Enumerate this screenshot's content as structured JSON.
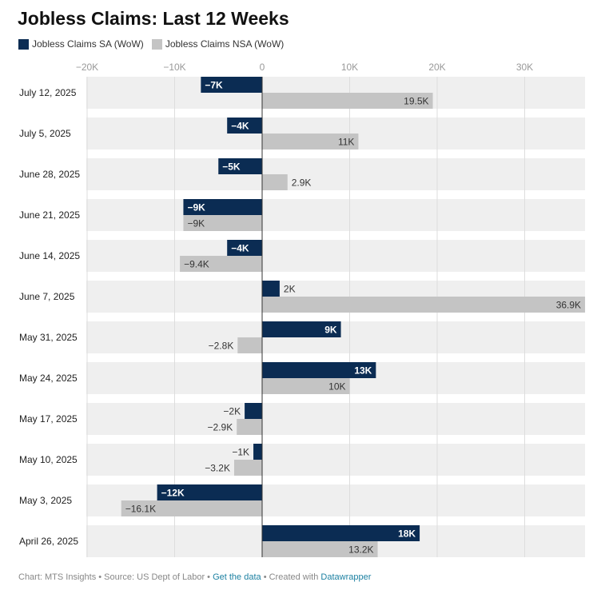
{
  "title": "Jobless Claims: Last 12 Weeks",
  "colors": {
    "sa": "#0b2c53",
    "nsa": "#c4c4c4",
    "row_bg": "#efefef"
  },
  "chart_data": {
    "type": "bar",
    "orientation": "horizontal",
    "categories": [
      "July 12, 2025",
      "July 5, 2025",
      "June 28, 2025",
      "June 21, 2025",
      "June 14, 2025",
      "June 7, 2025",
      "May 31, 2025",
      "May 24, 2025",
      "May 17, 2025",
      "May 10, 2025",
      "May 3, 2025",
      "April 26, 2025"
    ],
    "series": [
      {
        "name": "Jobless Claims SA (WoW)",
        "values": [
          -7000,
          -4000,
          -5000,
          -9000,
          -4000,
          2000,
          9000,
          13000,
          -2000,
          -1000,
          -12000,
          18000
        ],
        "labels": [
          "−7K",
          "−4K",
          "−5K",
          "−9K",
          "−4K",
          "2K",
          "9K",
          "13K",
          "−2K",
          "−1K",
          "−12K",
          "18K"
        ]
      },
      {
        "name": "Jobless Claims NSA (WoW)",
        "values": [
          19500,
          11000,
          2900,
          -9000,
          -9400,
          36900,
          -2800,
          10000,
          -2900,
          -3200,
          -16100,
          13200
        ],
        "labels": [
          "19.5K",
          "11K",
          "2.9K",
          "−9K",
          "−9.4K",
          "36.9K",
          "−2.8K",
          "10K",
          "−2.9K",
          "−3.2K",
          "−16.1K",
          "13.2K"
        ]
      }
    ],
    "x_ticks": [
      -20000,
      -10000,
      0,
      10000,
      20000,
      30000
    ],
    "x_tick_labels": [
      "−20K",
      "−10K",
      "0",
      "10K",
      "20K",
      "30K"
    ],
    "xlim": [
      -20000,
      36900
    ],
    "grid": true,
    "legend_position": "top-left"
  },
  "footer": {
    "prefix": "Chart: MTS Insights • Source: US Dept of Labor • ",
    "get_data": "Get the data",
    "mid": " • Created with ",
    "datawrapper": "Datawrapper"
  }
}
